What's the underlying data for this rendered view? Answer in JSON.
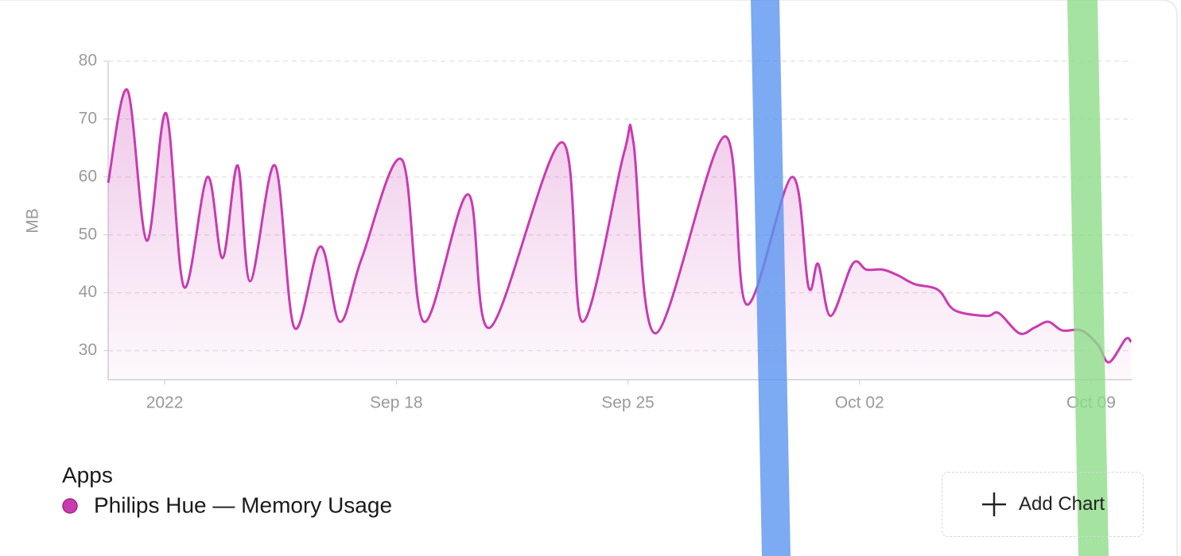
{
  "chart_data": {
    "type": "line",
    "y_label": "MB",
    "x": [
      "2022-09-09T07:00",
      "2022-09-09T21:00",
      "2022-09-10T11:00",
      "2022-09-11T01:00",
      "2022-09-11T14:00",
      "2022-09-12T07:00",
      "2022-09-12T18:00",
      "2022-09-13T05:00",
      "2022-09-13T14:00",
      "2022-09-14T08:00",
      "2022-09-14T22:00",
      "2022-09-15T17:00",
      "2022-09-16T07:00",
      "2022-09-16T23:00",
      "2022-09-18T04:00",
      "2022-09-18T20:00",
      "2022-09-20T04:00",
      "2022-09-20T20:00",
      "2022-09-23T00:00",
      "2022-09-23T15:00",
      "2022-09-24T21:00",
      "2022-09-25T04:00",
      "2022-09-25T20:00",
      "2022-09-27T22:00",
      "2022-09-28T14:00",
      "2022-09-29T23:00",
      "2022-09-30T11:00",
      "2022-09-30T18:00",
      "2022-10-01T03:00",
      "2022-10-01T19:00",
      "2022-10-02T05:00",
      "2022-10-02T17:00",
      "2022-10-03T04:00",
      "2022-10-03T16:00",
      "2022-10-04T09:00",
      "2022-10-04T21:00",
      "2022-10-05T20:00",
      "2022-10-06T05:00",
      "2022-10-06T20:00",
      "2022-10-07T07:00",
      "2022-10-07T17:00",
      "2022-10-08T03:00",
      "2022-10-08T17:00",
      "2022-10-09T05:00",
      "2022-10-09T13:00",
      "2022-10-10T01:00",
      "2022-10-10T05:00"
    ],
    "series": [
      {
        "name": "Philips Hue — Memory Usage",
        "color": "#c93bb0",
        "values": [
          59,
          75,
          49,
          71,
          41,
          60,
          46,
          62,
          42,
          62,
          34,
          48,
          35,
          46,
          63,
          35,
          57,
          34,
          66,
          35,
          64,
          66,
          33,
          67,
          38,
          60,
          41,
          45,
          36,
          45,
          44,
          44,
          43,
          41.5,
          40.5,
          37,
          36,
          36.5,
          33,
          34,
          35,
          33.5,
          33.5,
          31,
          28,
          32,
          31.5
        ]
      }
    ],
    "xlim": [
      "2022-09-09T07:00",
      "2022-10-10T06:00"
    ],
    "xticks": [
      {
        "value": "2022-09-11T00:00",
        "label": "2022"
      },
      {
        "value": "2022-09-18T00:00",
        "label": "Sep 18"
      },
      {
        "value": "2022-09-25T00:00",
        "label": "Sep 25"
      },
      {
        "value": "2022-10-02T00:00",
        "label": "Oct 02"
      },
      {
        "value": "2022-10-09T00:00",
        "label": "Oct 09"
      }
    ],
    "ylim": [
      25,
      80
    ],
    "yticks": [
      30,
      40,
      50,
      60,
      70,
      80
    ],
    "grid": true,
    "legend_title": "Apps"
  },
  "button": "Add Chart"
}
